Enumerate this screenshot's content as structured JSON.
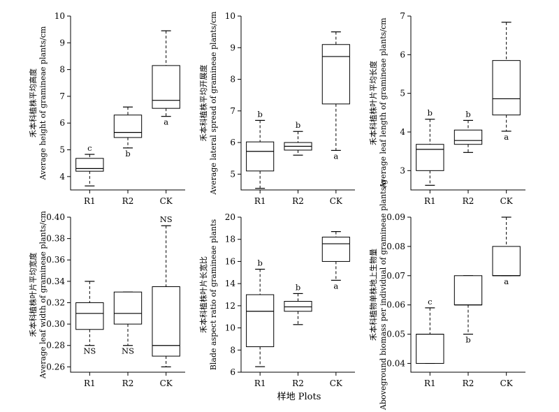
{
  "chart_data": [
    {
      "type": "boxplot",
      "ylabel_cn": "禾本科植株平均高度",
      "ylabel_en": "Average height of gramineae plants/cm",
      "categories": [
        "R1",
        "R2",
        "CK"
      ],
      "ylim": [
        3.5,
        10
      ],
      "yticks": [
        "4",
        "5",
        "6",
        "7",
        "8",
        "9",
        "10"
      ],
      "boxes": [
        {
          "min": 3.65,
          "q1": 4.2,
          "median": 4.3,
          "q3": 4.68,
          "max": 4.83,
          "label": "c",
          "label_pos": "top"
        },
        {
          "min": 5.07,
          "q1": 5.46,
          "median": 5.65,
          "q3": 6.3,
          "max": 6.6,
          "label": "b",
          "label_pos": "bottom"
        },
        {
          "min": 6.25,
          "q1": 6.55,
          "median": 6.85,
          "q3": 8.15,
          "max": 9.45,
          "label": "a",
          "label_pos": "bottom"
        }
      ]
    },
    {
      "type": "boxplot",
      "ylabel_cn": "禾本科植株平均开展度",
      "ylabel_en": "Average lateral spread of gramineae plants/cm",
      "categories": [
        "R1",
        "R2",
        "CK"
      ],
      "ylim": [
        4.5,
        10
      ],
      "yticks": [
        "5",
        "6",
        "7",
        "8",
        "9",
        "10"
      ],
      "boxes": [
        {
          "min": 4.55,
          "q1": 5.1,
          "median": 5.72,
          "q3": 6.02,
          "max": 6.7,
          "label": "b",
          "label_pos": "top"
        },
        {
          "min": 5.6,
          "q1": 5.76,
          "median": 5.88,
          "q3": 6.0,
          "max": 6.35,
          "label": "b",
          "label_pos": "top"
        },
        {
          "min": 5.75,
          "q1": 7.22,
          "median": 8.72,
          "q3": 9.1,
          "max": 9.5,
          "label": "a",
          "label_pos": "bottom"
        }
      ]
    },
    {
      "type": "boxplot",
      "ylabel_cn": "禾本科植株叶片平均长度",
      "ylabel_en": "Average leaf length of gramineae plants/cm",
      "categories": [
        "R1",
        "R2",
        "CK"
      ],
      "ylim": [
        2.5,
        7
      ],
      "yticks": [
        "3",
        "4",
        "5",
        "6",
        "7"
      ],
      "boxes": [
        {
          "min": 2.62,
          "q1": 3.0,
          "median": 3.55,
          "q3": 3.68,
          "max": 4.33,
          "label": "b",
          "label_pos": "top"
        },
        {
          "min": 3.47,
          "q1": 3.68,
          "median": 3.78,
          "q3": 4.05,
          "max": 4.3,
          "label": "b",
          "label_pos": "top"
        },
        {
          "min": 4.02,
          "q1": 4.44,
          "median": 4.86,
          "q3": 5.85,
          "max": 6.84,
          "label": "a",
          "label_pos": "bottom"
        }
      ]
    },
    {
      "type": "boxplot",
      "ylabel_cn": "禾本科植株叶片平均宽度",
      "ylabel_en": "Average leaf width of gramineae plants/cm",
      "categories": [
        "R1",
        "R2",
        "CK"
      ],
      "ylim": [
        0.255,
        0.4
      ],
      "yticks": [
        "0.26",
        "0.28",
        "0.30",
        "0.32",
        "0.34",
        "0.36",
        "0.38",
        "0.40"
      ],
      "boxes": [
        {
          "min": 0.28,
          "q1": 0.295,
          "median": 0.31,
          "q3": 0.32,
          "max": 0.34,
          "label": "NS",
          "label_pos": "bottom"
        },
        {
          "min": 0.28,
          "q1": 0.3,
          "median": 0.31,
          "q3": 0.33,
          "max": 0.33,
          "label": "NS",
          "label_pos": "bottom"
        },
        {
          "min": 0.26,
          "q1": 0.27,
          "median": 0.28,
          "q3": 0.335,
          "max": 0.392,
          "label": "NS",
          "label_pos": "top"
        }
      ]
    },
    {
      "type": "boxplot",
      "ylabel_cn": "禾本科植株叶片长宽比",
      "ylabel_en": "Blade aspect ratio of gramineae plants",
      "categories": [
        "R1",
        "R2",
        "CK"
      ],
      "ylim": [
        6,
        20
      ],
      "yticks": [
        "6",
        "8",
        "10",
        "12",
        "14",
        "16",
        "18",
        "20"
      ],
      "boxes": [
        {
          "min": 6.5,
          "q1": 8.3,
          "median": 11.5,
          "q3": 13.0,
          "max": 15.3,
          "label": "b",
          "label_pos": "top"
        },
        {
          "min": 10.3,
          "q1": 11.5,
          "median": 11.9,
          "q3": 12.4,
          "max": 13.1,
          "label": "b",
          "label_pos": "top"
        },
        {
          "min": 14.3,
          "q1": 16.0,
          "median": 17.6,
          "q3": 18.2,
          "max": 18.7,
          "label": "a",
          "label_pos": "bottom"
        }
      ]
    },
    {
      "type": "boxplot",
      "ylabel_cn": "禾本科植物单株地上生物量",
      "ylabel_en": "Aboveground biomass per individual of gramineae plants/g",
      "categories": [
        "R1",
        "R2",
        "CK"
      ],
      "ylim": [
        0.037,
        0.09
      ],
      "yticks": [
        "0.04",
        "0.05",
        "0.06",
        "0.07",
        "0.08",
        "0.09"
      ],
      "boxes": [
        {
          "min": 0.04,
          "q1": 0.04,
          "median": 0.05,
          "q3": 0.05,
          "max": 0.059,
          "label": "c",
          "label_pos": "top"
        },
        {
          "min": 0.05,
          "q1": 0.06,
          "median": 0.06,
          "q3": 0.07,
          "max": 0.07,
          "label": "b",
          "label_pos": "bottom"
        },
        {
          "min": 0.07,
          "q1": 0.07,
          "median": 0.07,
          "q3": 0.08,
          "max": 0.09,
          "label": "a",
          "label_pos": "bottom"
        }
      ]
    }
  ],
  "xaxis_title": "样地 Plots"
}
